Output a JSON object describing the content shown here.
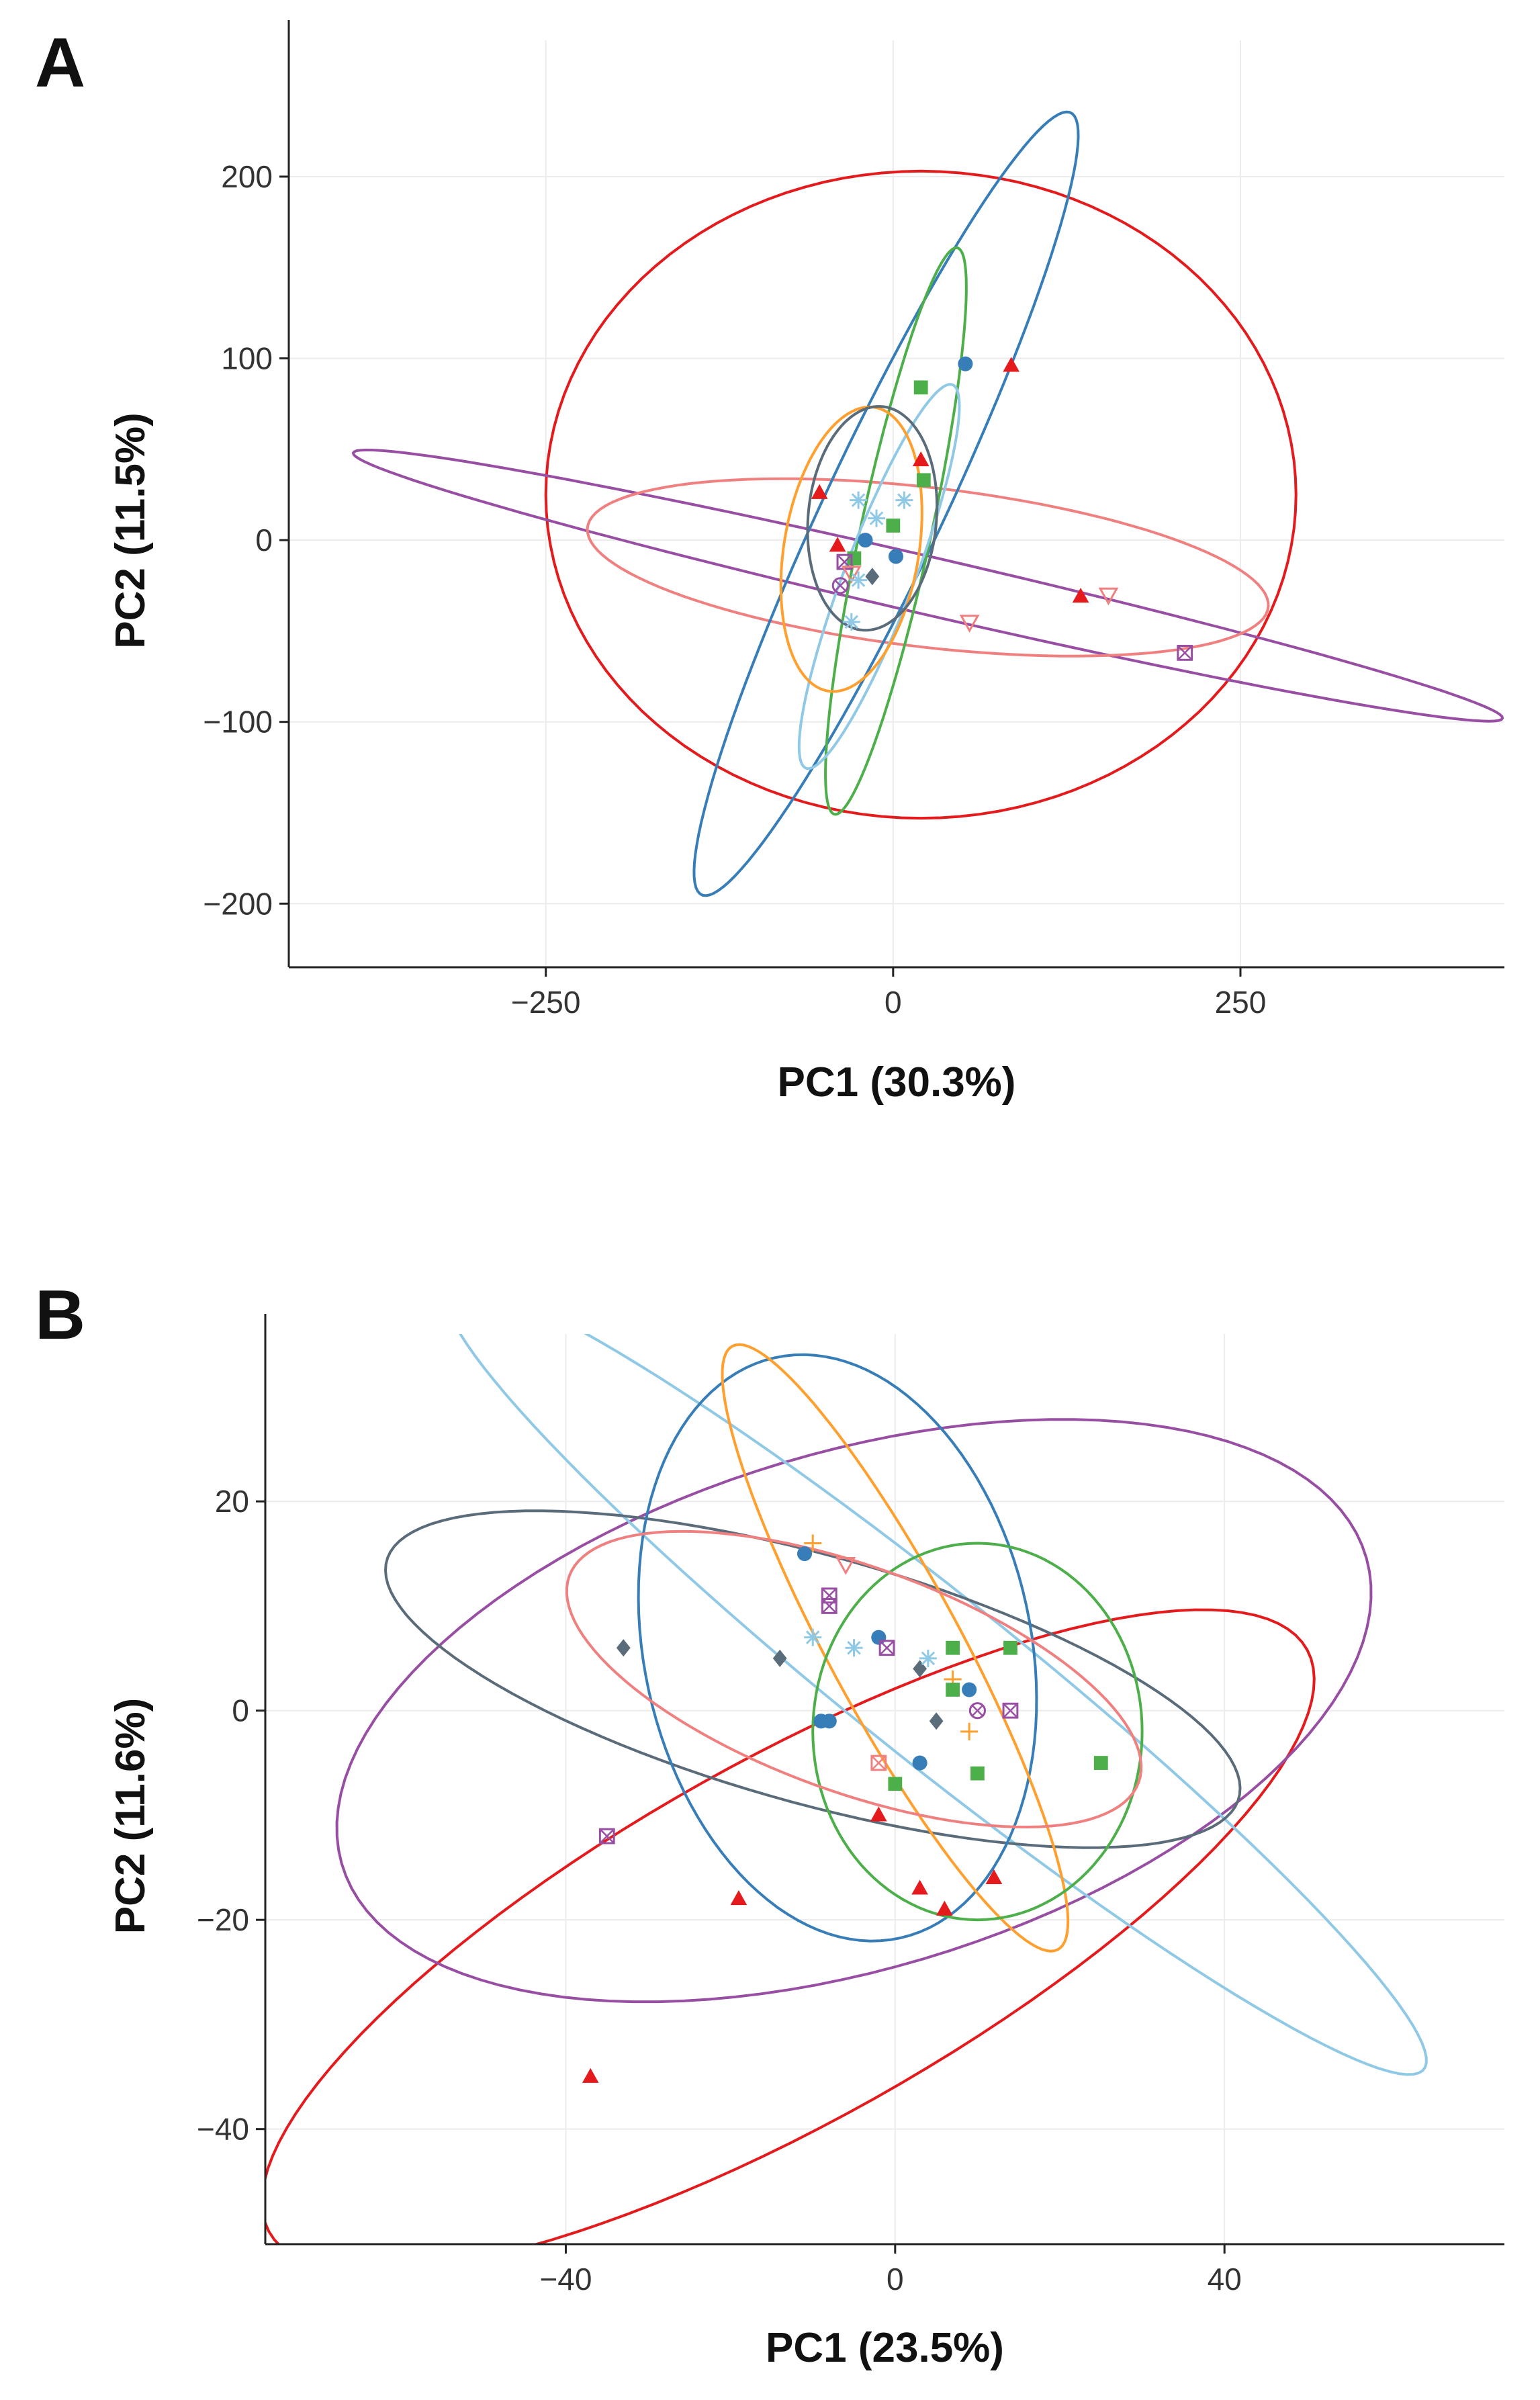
{
  "chart_data": [
    {
      "panel": "A",
      "type": "scatter",
      "xlabel": "PC1 (30.3%)",
      "ylabel": "PC2 (11.5%)",
      "xlim": [
        -435,
        440
      ],
      "ylim": [
        -235,
        275
      ],
      "xticks": [
        -250,
        0,
        250
      ],
      "yticks": [
        -200,
        -100,
        0,
        100,
        200
      ],
      "xtick_labels": [
        "−250",
        "0",
        "250"
      ],
      "ytick_labels": [
        "−200",
        "−100",
        "0",
        "100",
        "200"
      ],
      "grid": true,
      "ellipses": [
        {
          "color": "#e41a1c",
          "cx": 20,
          "cy": 25,
          "rx": 270,
          "ry": 178,
          "angle": 0
        },
        {
          "color": "#984ea3",
          "cx": 25,
          "cy": -25,
          "rx": 420,
          "ry": 16,
          "angle": -10
        },
        {
          "color": "#f08080",
          "cx": 25,
          "cy": -15,
          "rx": 246,
          "ry": 44,
          "angle": -5
        },
        {
          "color": "#377eb8",
          "cx": -5,
          "cy": 20,
          "rx": 253,
          "ry": 40,
          "angle": 58
        },
        {
          "color": "#4daf4a",
          "cx": 2,
          "cy": 5,
          "rx": 162,
          "ry": 25,
          "angle": 74
        },
        {
          "color": "#8fc9e6",
          "cx": -10,
          "cy": -20,
          "rx": 118,
          "ry": 24,
          "angle": 63
        },
        {
          "color": "#ff9f2e",
          "cx": -30,
          "cy": -5,
          "rx": 80,
          "ry": 48,
          "angle": 75
        },
        {
          "color": "#5a6b7a",
          "cx": -15,
          "cy": 12,
          "rx": 62,
          "ry": 46,
          "angle": 80
        }
      ],
      "points": [
        {
          "x": 52,
          "y": 97,
          "color": "#377eb8",
          "shape": "circle"
        },
        {
          "x": 85,
          "y": 96,
          "color": "#e41a1c",
          "shape": "triangle"
        },
        {
          "x": 20,
          "y": 84,
          "color": "#4daf4a",
          "shape": "square"
        },
        {
          "x": 20,
          "y": 44,
          "color": "#e41a1c",
          "shape": "triangle"
        },
        {
          "x": 22,
          "y": 33,
          "color": "#4daf4a",
          "shape": "square"
        },
        {
          "x": -53,
          "y": 26,
          "color": "#e41a1c",
          "shape": "triangle"
        },
        {
          "x": -25,
          "y": 22,
          "color": "#8fc9e6",
          "shape": "star"
        },
        {
          "x": 8,
          "y": 22,
          "color": "#8fc9e6",
          "shape": "star"
        },
        {
          "x": -12,
          "y": 12,
          "color": "#8fc9e6",
          "shape": "star"
        },
        {
          "x": 0,
          "y": 8,
          "color": "#4daf4a",
          "shape": "square"
        },
        {
          "x": -20,
          "y": 0,
          "color": "#377eb8",
          "shape": "circle"
        },
        {
          "x": -40,
          "y": -3,
          "color": "#e41a1c",
          "shape": "triangle"
        },
        {
          "x": 2,
          "y": -9,
          "color": "#377eb8",
          "shape": "circle"
        },
        {
          "x": -28,
          "y": -10,
          "color": "#4daf4a",
          "shape": "square"
        },
        {
          "x": -35,
          "y": -12,
          "color": "#984ea3",
          "shape": "square-x"
        },
        {
          "x": -30,
          "y": -18,
          "color": "#f08080",
          "shape": "triangle-down"
        },
        {
          "x": -25,
          "y": -22,
          "color": "#8fc9e6",
          "shape": "star"
        },
        {
          "x": -38,
          "y": -25,
          "color": "#984ea3",
          "shape": "circle-x"
        },
        {
          "x": -15,
          "y": -20,
          "color": "#5a6b7a",
          "shape": "diamond"
        },
        {
          "x": -30,
          "y": -45,
          "color": "#8fc9e6",
          "shape": "star"
        },
        {
          "x": 135,
          "y": -31,
          "color": "#e41a1c",
          "shape": "triangle"
        },
        {
          "x": 155,
          "y": -30,
          "color": "#f08080",
          "shape": "triangle-down"
        },
        {
          "x": 55,
          "y": -45,
          "color": "#f08080",
          "shape": "triangle-down"
        },
        {
          "x": 210,
          "y": -62,
          "color": "#984ea3",
          "shape": "square-x"
        }
      ]
    },
    {
      "panel": "B",
      "type": "scatter",
      "xlabel": "PC1 (23.5%)",
      "ylabel": "PC2 (11.6%)",
      "xlim": [
        -76.5,
        74
      ],
      "ylim": [
        -51,
        36
      ],
      "xticks": [
        -40,
        0,
        40
      ],
      "yticks": [
        -40,
        -20,
        0,
        20
      ],
      "xtick_labels": [
        "−40",
        "0",
        "40"
      ],
      "ytick_labels": [
        "−40",
        "−20",
        "0",
        "20"
      ],
      "grid": true,
      "ellipses": [
        {
          "color": "#e41a1c",
          "cx": -13,
          "cy": -22,
          "rx": 69,
          "ry": 18,
          "angle": 23
        },
        {
          "color": "#984ea3",
          "cx": -5,
          "cy": 0,
          "rx": 64,
          "ry": 25,
          "angle": 12
        },
        {
          "color": "#8fc9e6",
          "cx": 5,
          "cy": 3,
          "rx": 70,
          "ry": 8.5,
          "angle": -32
        },
        {
          "color": "#5a6b7a",
          "cx": -10,
          "cy": 3,
          "rx": 53,
          "ry": 12,
          "angle": -12
        },
        {
          "color": "#377eb8",
          "cx": -7,
          "cy": 6,
          "rx": 29,
          "ry": 23,
          "angle": -65
        },
        {
          "color": "#ff9f2e",
          "cx": 0,
          "cy": 6,
          "rx": 35,
          "ry": 7.5,
          "angle": -55
        },
        {
          "color": "#4daf4a",
          "cx": 10,
          "cy": -2,
          "rx": 20,
          "ry": 18,
          "angle": 0
        },
        {
          "color": "#f08080",
          "cx": -5,
          "cy": 3,
          "rx": 36,
          "ry": 11,
          "angle": -15
        }
      ],
      "points": [
        {
          "x": -37,
          "y": -35,
          "color": "#e41a1c",
          "shape": "triangle"
        },
        {
          "x": -19,
          "y": -18,
          "color": "#e41a1c",
          "shape": "triangle"
        },
        {
          "x": -2,
          "y": -10,
          "color": "#e41a1c",
          "shape": "triangle"
        },
        {
          "x": 3,
          "y": -17,
          "color": "#e41a1c",
          "shape": "triangle"
        },
        {
          "x": 6,
          "y": -19,
          "color": "#e41a1c",
          "shape": "triangle"
        },
        {
          "x": 12,
          "y": -16,
          "color": "#e41a1c",
          "shape": "triangle"
        },
        {
          "x": -35,
          "y": -12,
          "color": "#984ea3",
          "shape": "square-x"
        },
        {
          "x": -33,
          "y": 6,
          "color": "#5a6b7a",
          "shape": "diamond"
        },
        {
          "x": -14,
          "y": 5,
          "color": "#5a6b7a",
          "shape": "diamond"
        },
        {
          "x": 3,
          "y": 4,
          "color": "#5a6b7a",
          "shape": "diamond"
        },
        {
          "x": 5,
          "y": -1,
          "color": "#5a6b7a",
          "shape": "diamond"
        },
        {
          "x": -11,
          "y": 15,
          "color": "#377eb8",
          "shape": "circle"
        },
        {
          "x": -10,
          "y": 16,
          "color": "#ff9f2e",
          "shape": "plus"
        },
        {
          "x": -6,
          "y": 14,
          "color": "#f08080",
          "shape": "triangle-down"
        },
        {
          "x": -8,
          "y": 11,
          "color": "#984ea3",
          "shape": "square-x"
        },
        {
          "x": -8,
          "y": 10,
          "color": "#984ea3",
          "shape": "square-x"
        },
        {
          "x": -10,
          "y": 7,
          "color": "#8fc9e6",
          "shape": "star"
        },
        {
          "x": -5,
          "y": 6,
          "color": "#8fc9e6",
          "shape": "star"
        },
        {
          "x": -2,
          "y": 7,
          "color": "#377eb8",
          "shape": "circle"
        },
        {
          "x": -1,
          "y": 6,
          "color": "#984ea3",
          "shape": "square-x"
        },
        {
          "x": 4,
          "y": 5,
          "color": "#8fc9e6",
          "shape": "star"
        },
        {
          "x": 7,
          "y": 6,
          "color": "#4daf4a",
          "shape": "square"
        },
        {
          "x": 14,
          "y": 6,
          "color": "#4daf4a",
          "shape": "square"
        },
        {
          "x": 7,
          "y": 3,
          "color": "#ff9f2e",
          "shape": "plus"
        },
        {
          "x": 7,
          "y": 2,
          "color": "#4daf4a",
          "shape": "square"
        },
        {
          "x": 9,
          "y": 2,
          "color": "#377eb8",
          "shape": "circle"
        },
        {
          "x": 10,
          "y": 0,
          "color": "#984ea3",
          "shape": "circle-x"
        },
        {
          "x": 14,
          "y": 0,
          "color": "#984ea3",
          "shape": "square-x"
        },
        {
          "x": 9,
          "y": -2,
          "color": "#ff9f2e",
          "shape": "plus"
        },
        {
          "x": -9,
          "y": -1,
          "color": "#377eb8",
          "shape": "circle"
        },
        {
          "x": -8,
          "y": -1,
          "color": "#377eb8",
          "shape": "circle"
        },
        {
          "x": -2,
          "y": -5,
          "color": "#f08080",
          "shape": "square-x"
        },
        {
          "x": 3,
          "y": -5,
          "color": "#377eb8",
          "shape": "circle"
        },
        {
          "x": 10,
          "y": -6,
          "color": "#4daf4a",
          "shape": "square"
        },
        {
          "x": 0,
          "y": -7,
          "color": "#4daf4a",
          "shape": "square"
        },
        {
          "x": 25,
          "y": -5,
          "color": "#4daf4a",
          "shape": "square"
        }
      ]
    }
  ]
}
